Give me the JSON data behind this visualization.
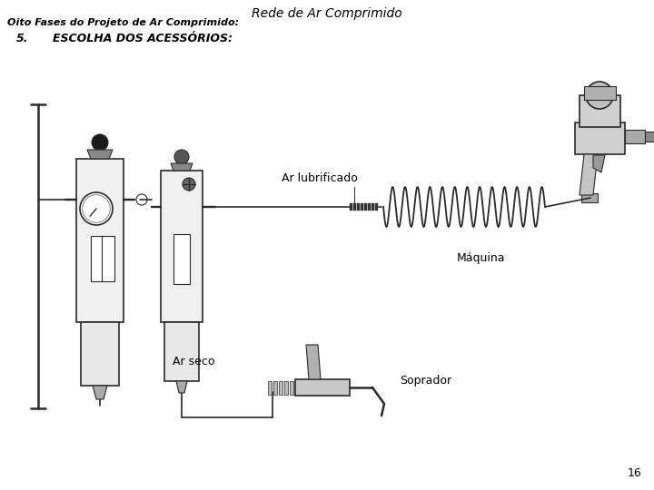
{
  "title": "Rede de Ar Comprimido",
  "subtitle": "Oito Fases do Projeto de Ar Comprimido:",
  "item_number": "5.",
  "item_text": "ESCOLHA DOS ACESSÓRIOS:",
  "page_number": "16",
  "label_ar_lubrificado": "Ar lubrificado",
  "label_maquina": "Máquina",
  "label_ar_seco": "Ar seco",
  "label_soprador": "Soprador",
  "bg_color": "#ffffff",
  "text_color": "#000000",
  "line_color": "#2a2a2a",
  "diagram_bg": "#f8f8f8"
}
